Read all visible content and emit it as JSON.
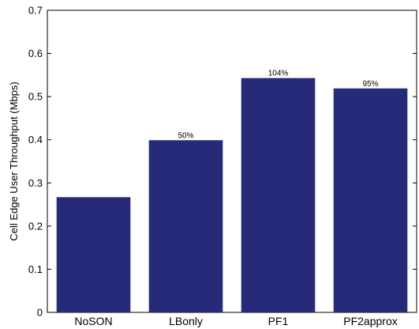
{
  "chart_data": {
    "type": "bar",
    "categories": [
      "NoSON",
      "LBonly",
      "PF1",
      "PF2approx"
    ],
    "values": [
      0.267,
      0.399,
      0.543,
      0.519
    ],
    "data_labels": [
      "",
      "50%",
      "104%",
      "95%"
    ],
    "title": "",
    "xlabel": "",
    "ylabel": "Cell Edge User Throughput (Mbps)",
    "ylim": [
      0,
      0.7
    ],
    "yticks": [
      0,
      0.1,
      0.2,
      0.3,
      0.4,
      0.5,
      0.6,
      0.7
    ],
    "ytick_labels": [
      "0",
      "0.1",
      "0.2",
      "0.3",
      "0.4",
      "0.5",
      "0.6",
      "0.7"
    ],
    "grid": false,
    "bar_color": "#262a78"
  }
}
